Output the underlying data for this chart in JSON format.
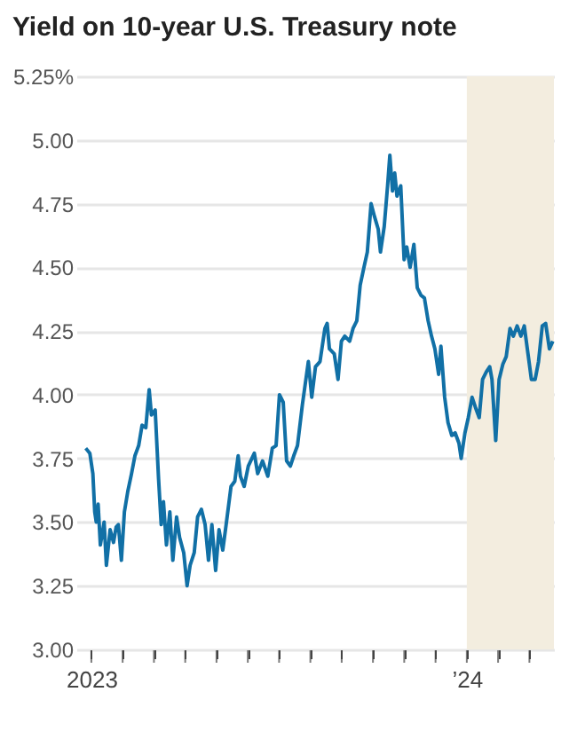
{
  "chart_data": {
    "type": "line",
    "title": "Yield on 10-year U.S. Treasury note",
    "x": [
      2022.985,
      2022.996,
      2023.004,
      2023.009,
      2023.013,
      2023.018,
      2023.024,
      2023.034,
      2023.04,
      2023.05,
      2023.059,
      2023.066,
      2023.072,
      2023.08,
      2023.088,
      2023.097,
      2023.107,
      2023.116,
      2023.126,
      2023.135,
      2023.145,
      2023.154,
      2023.16,
      2023.17,
      2023.179,
      2023.186,
      2023.192,
      2023.2,
      2023.209,
      2023.217,
      2023.227,
      2023.235,
      2023.246,
      2023.255,
      2023.263,
      2023.274,
      2023.283,
      2023.293,
      2023.303,
      2023.312,
      2023.321,
      2023.331,
      2023.34,
      2023.35,
      2023.359,
      2023.372,
      2023.382,
      2023.391,
      2023.397,
      2023.407,
      2023.418,
      2023.434,
      2023.443,
      2023.456,
      2023.47,
      2023.482,
      2023.492,
      2023.501,
      2023.511,
      2023.52,
      2023.53,
      2023.539,
      2023.549,
      2023.562,
      2023.578,
      2023.587,
      2023.597,
      2023.609,
      2023.622,
      2023.628,
      2023.634,
      2023.647,
      2023.657,
      2023.666,
      2023.675,
      2023.688,
      2023.697,
      2023.707,
      2023.716,
      2023.726,
      2023.735,
      2023.745,
      2023.754,
      2023.764,
      2023.77,
      2023.78,
      2023.789,
      2023.795,
      2023.802,
      2023.808,
      2023.814,
      2023.824,
      2023.833,
      2023.84,
      2023.849,
      2023.859,
      2023.868,
      2023.878,
      2023.887,
      2023.897,
      2023.906,
      2023.915,
      2023.925,
      2023.931,
      2023.941,
      2023.95,
      2023.96,
      2023.969,
      2023.979,
      2023.985,
      2023.995,
      2024.004,
      2024.014,
      2024.023,
      2024.033,
      2024.042,
      2024.052,
      2024.061,
      2024.067,
      2024.077,
      2024.086,
      2024.096,
      2024.105,
      2024.115,
      2024.124,
      2024.134,
      2024.144,
      2024.153,
      2024.163,
      2024.172,
      2024.182,
      2024.191,
      2024.201,
      2024.21,
      2024.22,
      2024.229
    ],
    "series": [
      {
        "color": "#1170a6",
        "values": [
          3.79,
          3.77,
          3.69,
          3.54,
          3.5,
          3.57,
          3.41,
          3.5,
          3.33,
          3.47,
          3.42,
          3.48,
          3.49,
          3.35,
          3.54,
          3.62,
          3.69,
          3.76,
          3.8,
          3.88,
          3.87,
          4.02,
          3.92,
          3.94,
          3.67,
          3.49,
          3.58,
          3.41,
          3.54,
          3.35,
          3.52,
          3.44,
          3.38,
          3.25,
          3.33,
          3.38,
          3.52,
          3.55,
          3.49,
          3.35,
          3.49,
          3.31,
          3.47,
          3.39,
          3.49,
          3.64,
          3.66,
          3.76,
          3.68,
          3.64,
          3.72,
          3.77,
          3.69,
          3.74,
          3.68,
          3.79,
          3.8,
          4.0,
          3.97,
          3.74,
          3.72,
          3.76,
          3.8,
          3.96,
          4.13,
          3.99,
          4.11,
          4.13,
          4.26,
          4.28,
          4.18,
          4.16,
          4.06,
          4.21,
          4.23,
          4.21,
          4.26,
          4.29,
          4.43,
          4.5,
          4.56,
          4.75,
          4.7,
          4.65,
          4.56,
          4.66,
          4.82,
          4.94,
          4.8,
          4.87,
          4.78,
          4.82,
          4.53,
          4.58,
          4.5,
          4.59,
          4.42,
          4.39,
          4.38,
          4.29,
          4.23,
          4.18,
          4.08,
          4.19,
          3.99,
          3.89,
          3.84,
          3.85,
          3.81,
          3.75,
          3.85,
          3.91,
          3.99,
          3.95,
          3.91,
          4.06,
          4.09,
          4.11,
          4.06,
          3.82,
          4.06,
          4.12,
          4.15,
          4.26,
          4.23,
          4.27,
          4.23,
          4.27,
          4.16,
          4.06,
          4.06,
          4.13,
          4.27,
          4.28,
          4.18,
          4.21
        ]
      }
    ],
    "xlim": [
      2022.96,
      2024.232
    ],
    "xticks": [
      {
        "value": 2023,
        "label": "2023"
      },
      {
        "value": 2023.0833,
        "label": null
      },
      {
        "value": 2023.1667,
        "label": null
      },
      {
        "value": 2023.25,
        "label": null
      },
      {
        "value": 2023.3333,
        "label": null
      },
      {
        "value": 2023.4167,
        "label": null
      },
      {
        "value": 2023.5,
        "label": null
      },
      {
        "value": 2023.5833,
        "label": null
      },
      {
        "value": 2023.6667,
        "label": null
      },
      {
        "value": 2023.75,
        "label": null
      },
      {
        "value": 2023.8333,
        "label": null
      },
      {
        "value": 2023.9167,
        "label": null
      },
      {
        "value": 2024,
        "label": "’24"
      },
      {
        "value": 2024.0833,
        "label": null
      },
      {
        "value": 2024.1667,
        "label": null
      }
    ],
    "ylim": [
      3.0,
      5.25
    ],
    "yticks": [
      {
        "value": 3,
        "label": "3.00"
      },
      {
        "value": 3.25,
        "label": "3.25"
      },
      {
        "value": 3.5,
        "label": "3.50"
      },
      {
        "value": 3.75,
        "label": "3.75"
      },
      {
        "value": 4,
        "label": "4.00"
      },
      {
        "value": 4.25,
        "label": "4.25"
      },
      {
        "value": 4.5,
        "label": "4.50"
      },
      {
        "value": 4.75,
        "label": "4.75"
      },
      {
        "value": 5,
        "label": "5.00"
      },
      {
        "value": 5.25,
        "label": "5.25%"
      }
    ],
    "bands": [
      {
        "axis": "x",
        "from": 2024,
        "to": 2024.232,
        "color": "#f3eddf"
      }
    ],
    "grid": "y",
    "marker": "none",
    "line_style": "solid"
  }
}
